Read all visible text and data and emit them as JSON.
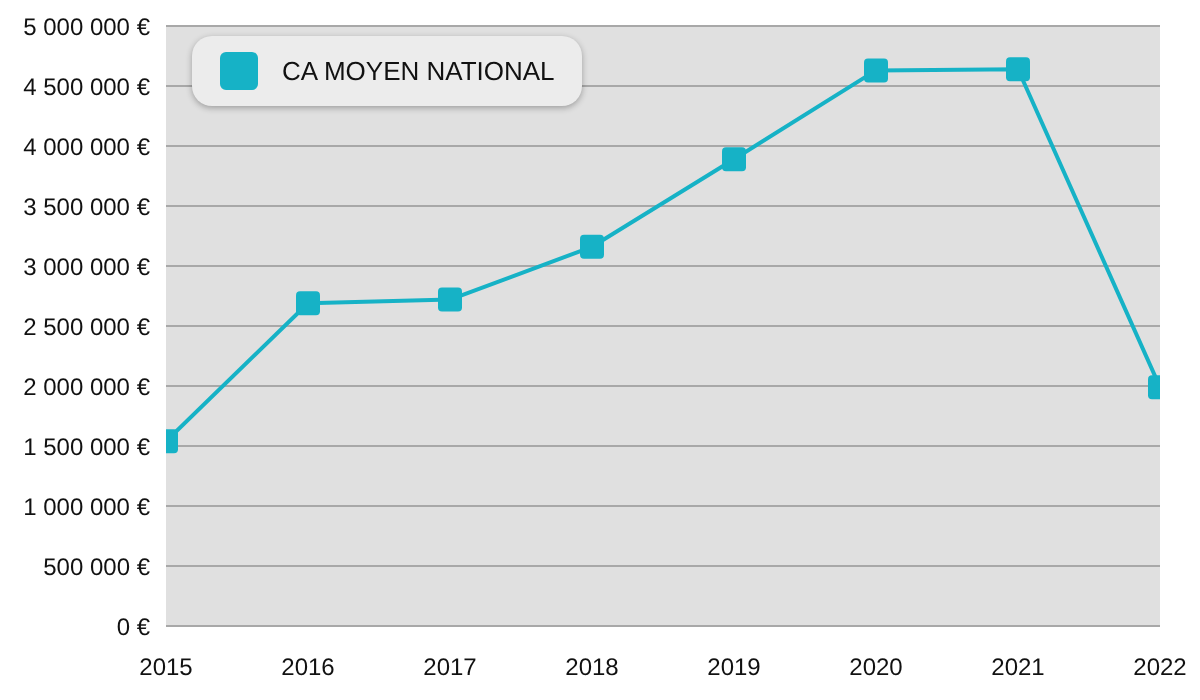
{
  "chart_data": {
    "type": "line",
    "x": [
      2015,
      2016,
      2017,
      2018,
      2019,
      2020,
      2021,
      2022
    ],
    "series": [
      {
        "name": "CA MOYEN NATIONAL",
        "color": "#16b2c6",
        "values": [
          1540000,
          2690000,
          2720000,
          3160000,
          3890000,
          4630000,
          4640000,
          1990000
        ]
      }
    ],
    "xlim": [
      2015,
      2022
    ],
    "xticks": [
      2015,
      2016,
      2017,
      2018,
      2019,
      2020,
      2021,
      2022
    ],
    "ylim": [
      0,
      5000000
    ],
    "yticks": [
      {
        "value": 0,
        "label": "0 €"
      },
      {
        "value": 500000,
        "label": "500 000 €"
      },
      {
        "value": 1000000,
        "label": "1 000 000 €"
      },
      {
        "value": 1500000,
        "label": "1 500 000 €"
      },
      {
        "value": 2000000,
        "label": "2 000 000 €"
      },
      {
        "value": 2500000,
        "label": "2 500 000 €"
      },
      {
        "value": 3000000,
        "label": "3 000 000 €"
      },
      {
        "value": 3500000,
        "label": "3 500 000 €"
      },
      {
        "value": 4000000,
        "label": "4 000 000 €"
      },
      {
        "value": 4500000,
        "label": "4 500 000 €"
      },
      {
        "value": 5000000,
        "label": "5 000 000 €"
      }
    ],
    "grid": "y",
    "legend": "top left",
    "marker": "square",
    "line_style": "solid"
  }
}
